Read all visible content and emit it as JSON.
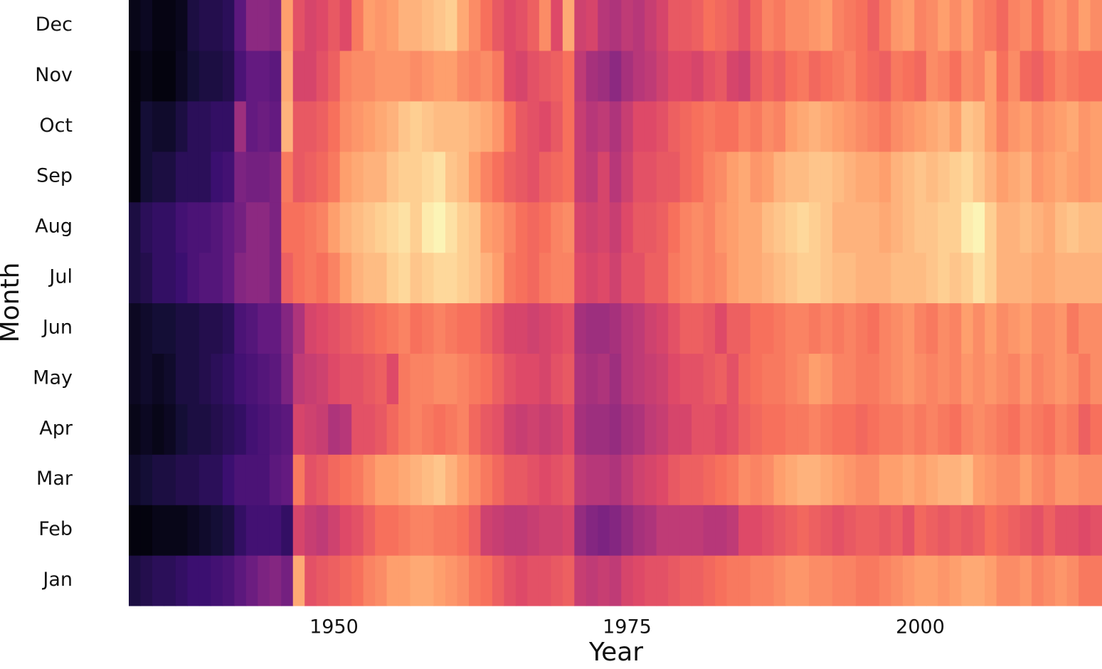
{
  "chart_data": {
    "type": "heatmap",
    "x_label": "Year",
    "y_label": "Month",
    "colormap": "magma",
    "zlim": [
      0,
      100
    ],
    "xlim": [
      1932.5,
      2015.5
    ],
    "xticks": [
      1950,
      1975,
      2000
    ],
    "x": [
      1933,
      1934,
      1935,
      1936,
      1937,
      1938,
      1939,
      1940,
      1941,
      1942,
      1943,
      1944,
      1945,
      1946,
      1947,
      1948,
      1949,
      1950,
      1951,
      1952,
      1953,
      1954,
      1955,
      1956,
      1957,
      1958,
      1959,
      1960,
      1961,
      1962,
      1963,
      1964,
      1965,
      1966,
      1967,
      1968,
      1969,
      1970,
      1971,
      1972,
      1973,
      1974,
      1975,
      1976,
      1977,
      1978,
      1979,
      1980,
      1981,
      1982,
      1983,
      1984,
      1985,
      1986,
      1987,
      1988,
      1989,
      1990,
      1991,
      1992,
      1993,
      1994,
      1995,
      1996,
      1997,
      1998,
      1999,
      2000,
      2001,
      2002,
      2003,
      2004,
      2005,
      2006,
      2007,
      2008,
      2009,
      2010,
      2011,
      2012,
      2013,
      2014,
      2015
    ],
    "y": [
      "Jan",
      "Feb",
      "Mar",
      "Apr",
      "May",
      "Jun",
      "Jul",
      "Aug",
      "Sep",
      "Oct",
      "Nov",
      "Dec"
    ],
    "z": [
      [
        12,
        14,
        16,
        16,
        18,
        20,
        20,
        22,
        24,
        28,
        32,
        36,
        38,
        34,
        82,
        62,
        64,
        66,
        68,
        70,
        74,
        76,
        80,
        80,
        82,
        82,
        80,
        78,
        76,
        72,
        70,
        66,
        62,
        60,
        62,
        62,
        64,
        66,
        54,
        52,
        54,
        52,
        58,
        60,
        62,
        62,
        64,
        66,
        66,
        68,
        70,
        72,
        72,
        74,
        74,
        76,
        78,
        78,
        76,
        76,
        74,
        74,
        72,
        72,
        74,
        76,
        78,
        80,
        80,
        78,
        80,
        82,
        82,
        80,
        76,
        76,
        78,
        74,
        76,
        78,
        76,
        72,
        72
      ],
      [
        2,
        2,
        4,
        4,
        4,
        6,
        8,
        10,
        12,
        18,
        22,
        22,
        22,
        18,
        58,
        54,
        52,
        56,
        60,
        62,
        66,
        70,
        70,
        72,
        74,
        74,
        72,
        72,
        70,
        66,
        56,
        54,
        52,
        52,
        54,
        56,
        56,
        58,
        42,
        38,
        36,
        38,
        42,
        46,
        48,
        52,
        52,
        52,
        52,
        50,
        50,
        52,
        60,
        60,
        62,
        64,
        66,
        68,
        66,
        64,
        62,
        64,
        66,
        66,
        64,
        66,
        62,
        68,
        66,
        64,
        66,
        64,
        66,
        70,
        68,
        66,
        64,
        62,
        66,
        62,
        62,
        60,
        62
      ],
      [
        8,
        10,
        12,
        12,
        14,
        14,
        16,
        16,
        20,
        24,
        24,
        24,
        28,
        30,
        72,
        62,
        64,
        68,
        70,
        72,
        76,
        80,
        80,
        82,
        84,
        86,
        88,
        84,
        80,
        76,
        72,
        68,
        64,
        64,
        62,
        60,
        62,
        64,
        52,
        50,
        50,
        48,
        52,
        56,
        58,
        60,
        64,
        66,
        66,
        68,
        70,
        72,
        76,
        74,
        76,
        80,
        82,
        84,
        84,
        82,
        80,
        78,
        76,
        76,
        80,
        80,
        82,
        80,
        82,
        84,
        84,
        86,
        80,
        78,
        76,
        76,
        80,
        76,
        74,
        78,
        78,
        76,
        76
      ],
      [
        4,
        6,
        4,
        6,
        10,
        12,
        12,
        14,
        16,
        18,
        22,
        24,
        26,
        28,
        58,
        56,
        54,
        48,
        50,
        62,
        62,
        64,
        68,
        72,
        74,
        72,
        70,
        72,
        74,
        68,
        64,
        62,
        56,
        54,
        56,
        54,
        56,
        60,
        46,
        44,
        44,
        42,
        46,
        48,
        52,
        54,
        58,
        58,
        62,
        62,
        60,
        62,
        66,
        68,
        70,
        70,
        72,
        72,
        74,
        72,
        70,
        70,
        68,
        70,
        72,
        72,
        74,
        72,
        74,
        72,
        70,
        74,
        76,
        74,
        72,
        70,
        74,
        72,
        70,
        74,
        72,
        66,
        70
      ],
      [
        6,
        8,
        6,
        8,
        12,
        12,
        14,
        16,
        18,
        22,
        24,
        26,
        28,
        36,
        52,
        54,
        56,
        60,
        62,
        62,
        64,
        66,
        60,
        72,
        74,
        74,
        76,
        76,
        74,
        72,
        70,
        66,
        62,
        60,
        60,
        58,
        62,
        64,
        48,
        46,
        48,
        44,
        50,
        52,
        54,
        56,
        60,
        62,
        62,
        64,
        66,
        62,
        68,
        70,
        72,
        72,
        74,
        76,
        80,
        78,
        74,
        74,
        72,
        72,
        74,
        76,
        78,
        76,
        74,
        76,
        74,
        78,
        76,
        78,
        76,
        74,
        78,
        74,
        76,
        78,
        76,
        72,
        76
      ],
      [
        6,
        8,
        10,
        10,
        12,
        12,
        14,
        14,
        16,
        24,
        26,
        30,
        30,
        38,
        48,
        58,
        60,
        62,
        64,
        66,
        68,
        70,
        72,
        74,
        70,
        72,
        74,
        72,
        70,
        70,
        66,
        62,
        58,
        58,
        56,
        58,
        60,
        62,
        46,
        44,
        44,
        46,
        50,
        52,
        56,
        58,
        62,
        66,
        66,
        64,
        60,
        66,
        66,
        70,
        70,
        72,
        74,
        74,
        72,
        74,
        72,
        74,
        72,
        70,
        74,
        76,
        78,
        74,
        72,
        76,
        74,
        80,
        76,
        80,
        76,
        78,
        80,
        76,
        76,
        78,
        72,
        76,
        76
      ],
      [
        12,
        14,
        18,
        18,
        20,
        24,
        26,
        26,
        30,
        38,
        40,
        40,
        36,
        66,
        70,
        72,
        70,
        74,
        80,
        84,
        86,
        86,
        90,
        92,
        88,
        90,
        92,
        92,
        90,
        88,
        84,
        80,
        72,
        70,
        68,
        72,
        74,
        74,
        60,
        58,
        60,
        56,
        62,
        62,
        66,
        66,
        72,
        74,
        76,
        74,
        76,
        80,
        82,
        82,
        84,
        86,
        88,
        90,
        90,
        88,
        86,
        86,
        84,
        84,
        84,
        86,
        86,
        86,
        88,
        90,
        88,
        90,
        94,
        90,
        84,
        84,
        84,
        82,
        82,
        84,
        84,
        84,
        84
      ],
      [
        12,
        16,
        18,
        18,
        22,
        24,
        24,
        26,
        30,
        34,
        40,
        40,
        36,
        70,
        70,
        72,
        74,
        80,
        84,
        86,
        88,
        90,
        92,
        94,
        90,
        96,
        98,
        94,
        90,
        88,
        80,
        78,
        74,
        70,
        68,
        70,
        74,
        76,
        58,
        56,
        58,
        54,
        60,
        64,
        64,
        66,
        70,
        74,
        76,
        74,
        78,
        80,
        82,
        82,
        86,
        88,
        90,
        92,
        90,
        88,
        84,
        84,
        84,
        84,
        82,
        84,
        86,
        88,
        88,
        90,
        90,
        96,
        98,
        90,
        84,
        84,
        86,
        84,
        82,
        86,
        88,
        86,
        86
      ],
      [
        2,
        10,
        12,
        12,
        16,
        16,
        16,
        20,
        22,
        36,
        34,
        34,
        36,
        72,
        64,
        66,
        68,
        72,
        80,
        82,
        84,
        84,
        88,
        90,
        90,
        92,
        94,
        88,
        86,
        80,
        74,
        70,
        66,
        64,
        62,
        66,
        68,
        70,
        54,
        52,
        58,
        50,
        56,
        62,
        62,
        64,
        64,
        68,
        70,
        74,
        76,
        80,
        82,
        78,
        80,
        84,
        86,
        86,
        88,
        88,
        86,
        84,
        82,
        82,
        80,
        84,
        86,
        88,
        86,
        88,
        90,
        92,
        88,
        84,
        80,
        82,
        84,
        78,
        80,
        82,
        80,
        78,
        80
      ],
      [
        2,
        10,
        8,
        8,
        12,
        16,
        16,
        18,
        18,
        44,
        30,
        32,
        30,
        84,
        64,
        64,
        66,
        70,
        76,
        78,
        80,
        82,
        84,
        88,
        90,
        88,
        86,
        86,
        86,
        84,
        82,
        78,
        70,
        64,
        62,
        60,
        64,
        70,
        54,
        50,
        52,
        48,
        54,
        60,
        60,
        62,
        66,
        68,
        70,
        72,
        70,
        70,
        74,
        72,
        76,
        74,
        80,
        82,
        84,
        82,
        80,
        78,
        76,
        74,
        72,
        76,
        78,
        80,
        82,
        84,
        80,
        88,
        86,
        80,
        74,
        78,
        80,
        76,
        78,
        80,
        82,
        78,
        80
      ],
      [
        2,
        4,
        2,
        2,
        6,
        10,
        12,
        12,
        14,
        24,
        30,
        30,
        28,
        82,
        58,
        58,
        62,
        66,
        74,
        76,
        76,
        78,
        78,
        78,
        76,
        78,
        80,
        80,
        76,
        74,
        76,
        72,
        60,
        58,
        62,
        64,
        66,
        70,
        52,
        46,
        44,
        40,
        46,
        50,
        52,
        56,
        60,
        60,
        58,
        62,
        64,
        58,
        56,
        64,
        68,
        66,
        70,
        72,
        68,
        70,
        72,
        74,
        70,
        68,
        66,
        72,
        70,
        68,
        76,
        74,
        70,
        76,
        74,
        80,
        70,
        76,
        68,
        66,
        70,
        74,
        72,
        70,
        70
      ],
      [
        4,
        6,
        3,
        3,
        5,
        12,
        14,
        14,
        16,
        28,
        40,
        40,
        38,
        80,
        62,
        58,
        60,
        64,
        60,
        72,
        80,
        78,
        80,
        84,
        84,
        86,
        88,
        90,
        82,
        76,
        70,
        64,
        60,
        62,
        66,
        76,
        60,
        82,
        56,
        58,
        50,
        48,
        52,
        50,
        54,
        58,
        64,
        64,
        66,
        70,
        68,
        66,
        62,
        68,
        74,
        72,
        76,
        76,
        78,
        80,
        74,
        72,
        70,
        66,
        72,
        78,
        80,
        74,
        76,
        80,
        76,
        80,
        74,
        72,
        68,
        74,
        76,
        70,
        76,
        78,
        74,
        80,
        76
      ]
    ]
  }
}
